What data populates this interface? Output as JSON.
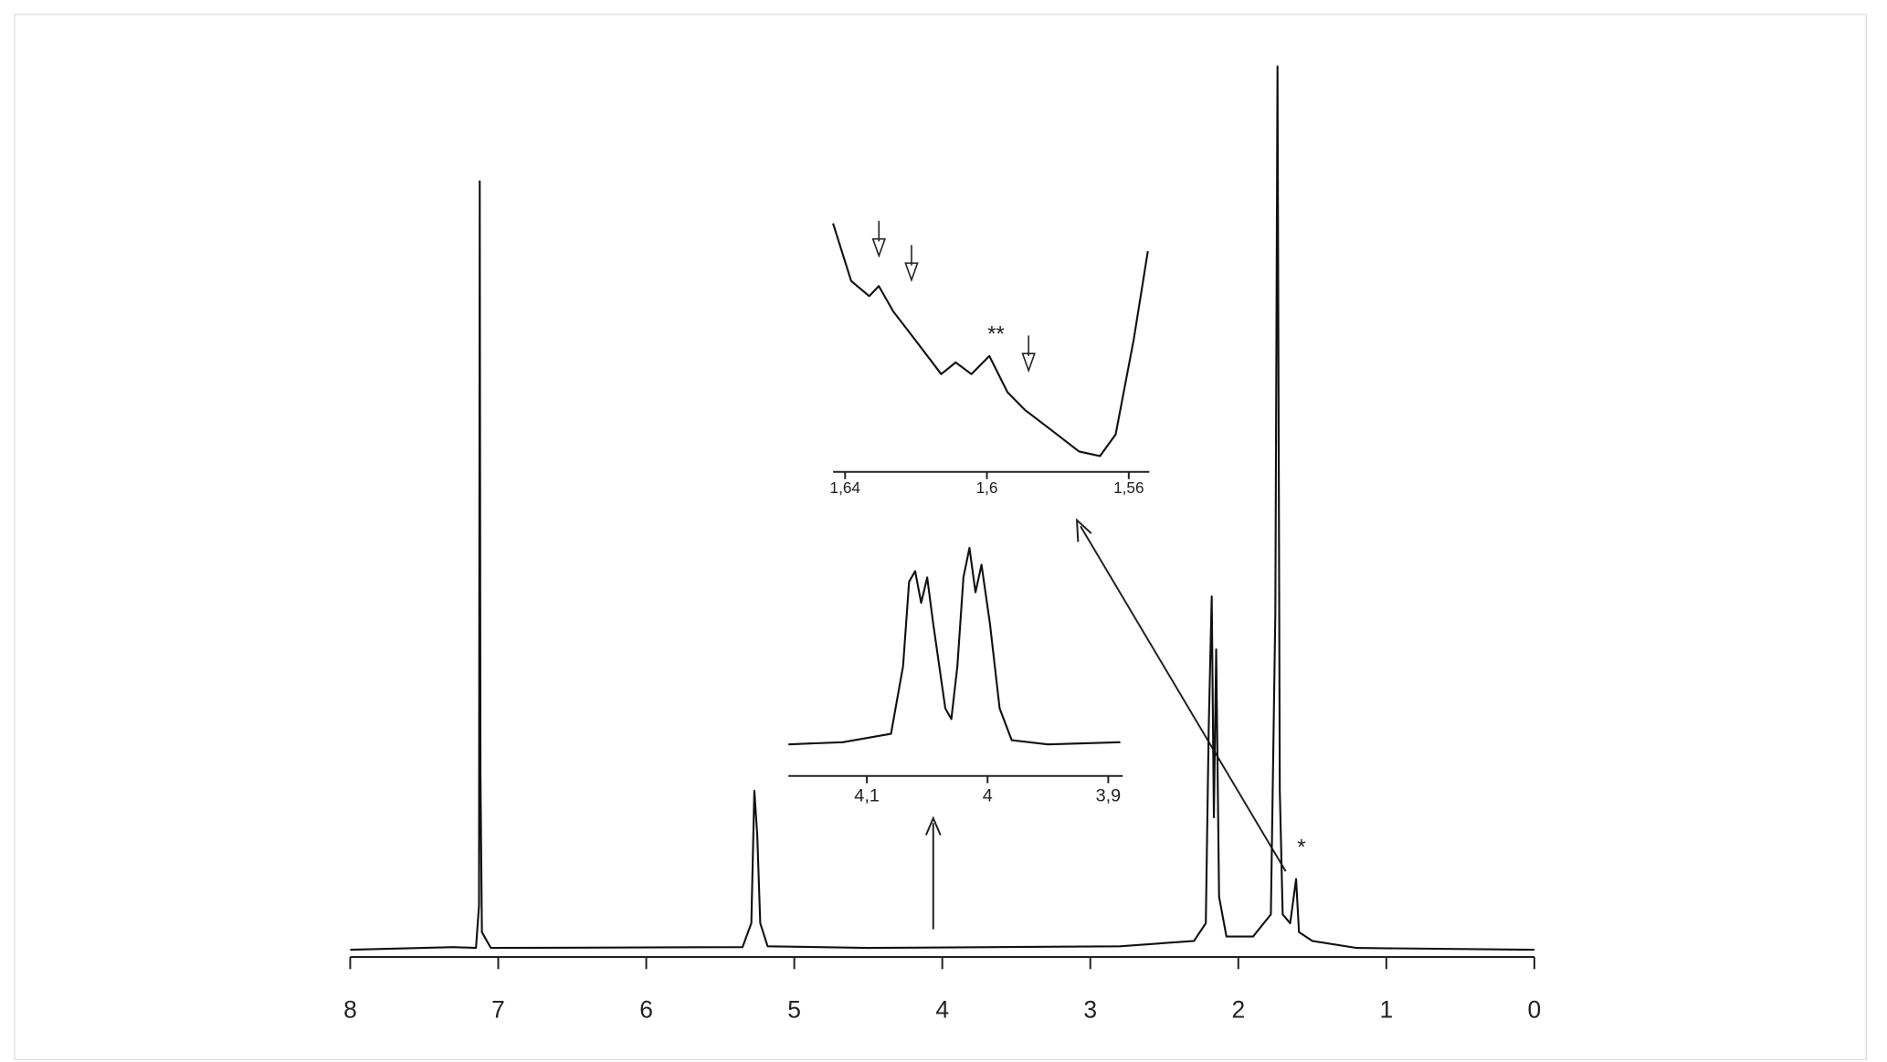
{
  "chart_data": [
    {
      "type": "line",
      "color": "#111111",
      "x": [
        8,
        7.3,
        7.15,
        7.13,
        7.125,
        7.12,
        7.11,
        7.05,
        5.35,
        5.29,
        5.27,
        5.25,
        5.23,
        5.18,
        4.5,
        2.8,
        2.3,
        2.22,
        2.2,
        2.18,
        2.165,
        2.15,
        2.13,
        2.08,
        1.9,
        1.78,
        1.75,
        1.735,
        1.72,
        1.7,
        1.65,
        1.61,
        1.59,
        1.5,
        1.2,
        0
      ],
      "values": [
        0,
        0.3,
        0.2,
        5,
        87,
        20,
        2,
        0.2,
        0.3,
        3,
        18,
        13,
        3,
        0.4,
        0.2,
        0.4,
        1,
        3,
        25,
        40,
        15,
        34,
        6,
        1.5,
        1.5,
        4,
        38,
        100,
        18,
        4,
        3,
        8,
        2,
        1,
        0.2,
        0
      ],
      "xlim": [
        8,
        0
      ],
      "ylim": [
        0,
        100
      ],
      "xticks": [
        8,
        7,
        6,
        5,
        4,
        3,
        2,
        1,
        0
      ],
      "annotations": [
        "*"
      ]
    },
    {
      "type": "line",
      "color": "#111111",
      "x": [
        4.165,
        4.12,
        4.08,
        4.07,
        4.065,
        4.06,
        4.055,
        4.05,
        4.045,
        4.035,
        4.03,
        4.025,
        4.02,
        4.015,
        4.01,
        4.005,
        3.998,
        3.99,
        3.98,
        3.95,
        3.89
      ],
      "values": [
        3,
        4,
        8,
        40,
        80,
        85,
        70,
        82,
        60,
        20,
        15,
        40,
        82,
        96,
        75,
        88,
        60,
        20,
        5,
        3,
        4
      ],
      "xlim": [
        4.165,
        3.888
      ],
      "ylim": [
        0,
        100
      ],
      "xticks": [
        {
          "value": 4.1,
          "label": "4,1"
        },
        4,
        {
          "value": 3.9,
          "label": "3,9"
        }
      ]
    },
    {
      "type": "line",
      "color": "#111111",
      "x": [
        1.6434,
        1.6383,
        1.6332,
        1.6305,
        1.6264,
        1.6214,
        1.6129,
        1.6088,
        1.6044,
        1.5993,
        1.5942,
        1.5892,
        1.5824,
        1.574,
        1.5681,
        1.5637,
        1.5586,
        1.5546
      ],
      "values": [
        97.6,
        75,
        69,
        73,
        63,
        54,
        38.4,
        43,
        38.4,
        45.5,
        31.3,
        24.2,
        17,
        8,
        6.2,
        14.7,
        52,
        86.7
      ],
      "xlim": [
        1.6434,
        1.5542
      ],
      "ylim": [
        0,
        100
      ],
      "xticks": [
        {
          "value": 1.64,
          "label": "1,64"
        },
        {
          "value": 1.6,
          "label": "1,6"
        },
        {
          "value": 1.56,
          "label": "1,56"
        }
      ],
      "annotations": [
        "**"
      ]
    }
  ]
}
